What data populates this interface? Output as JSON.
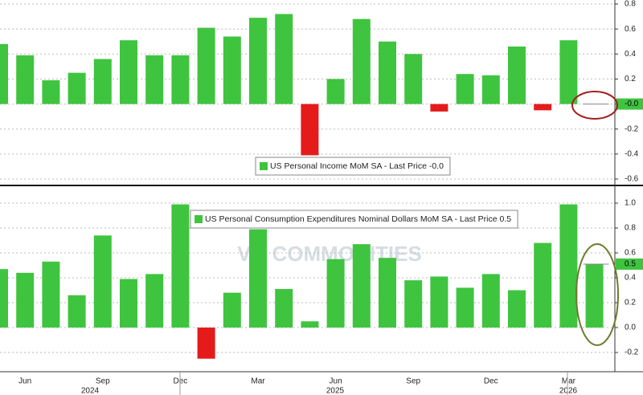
{
  "chart_data": [
    {
      "type": "bar",
      "legend": "US Personal Income MoM SA - Last Price -0.0",
      "last_price_label": "-0.0",
      "values": [
        0.48,
        0.39,
        0.19,
        0.25,
        0.36,
        0.51,
        0.39,
        0.39,
        0.61,
        0.54,
        0.69,
        0.72,
        -0.41,
        0.2,
        0.68,
        0.5,
        0.4,
        -0.06,
        0.24,
        0.23,
        0.46,
        -0.05,
        0.51,
        0
      ],
      "color": "#3fc43f",
      "negative_color": "#e51b1b",
      "ylim": [
        -0.66,
        0.83
      ],
      "yticks": [
        0.8,
        0.6,
        0.4,
        0.2,
        {
          "value": 0,
          "label": "0.0"
        },
        -0.2,
        -0.4,
        -0.6
      ],
      "grid": true
    },
    {
      "type": "bar",
      "legend": "US Personal Consumption Expenditures Nominal Dollars MoM SA - Last Price 0.5",
      "last_price_label": "0.5",
      "categories": [
        null,
        "Jun",
        null,
        null,
        "Sep",
        null,
        null,
        "Dec",
        null,
        null,
        "Mar",
        null,
        null,
        "Jun",
        null,
        null,
        "Sep",
        null,
        null,
        "Dec",
        null,
        null,
        "Mar",
        null
      ],
      "years": [
        "2024",
        "2025",
        "2026"
      ],
      "values": [
        0.47,
        0.44,
        0.53,
        0.26,
        0.74,
        0.39,
        0.43,
        0.99,
        -0.25,
        0.28,
        0.79,
        0.31,
        0.05,
        0.55,
        0.67,
        0.56,
        0.38,
        0.41,
        0.32,
        0.43,
        0.3,
        0.68,
        0.99,
        0.51
      ],
      "color": "#3fc43f",
      "negative_color": "#e51b1b",
      "ylim": [
        -0.3,
        1.1
      ],
      "yticks": [
        {
          "value": 1,
          "label": "1.0"
        },
        0.8,
        0.6,
        0.4,
        0.2,
        {
          "value": 0,
          "label": "0.0"
        },
        -0.2
      ],
      "grid": true
    }
  ],
  "watermark": "VN COMMODITIES"
}
